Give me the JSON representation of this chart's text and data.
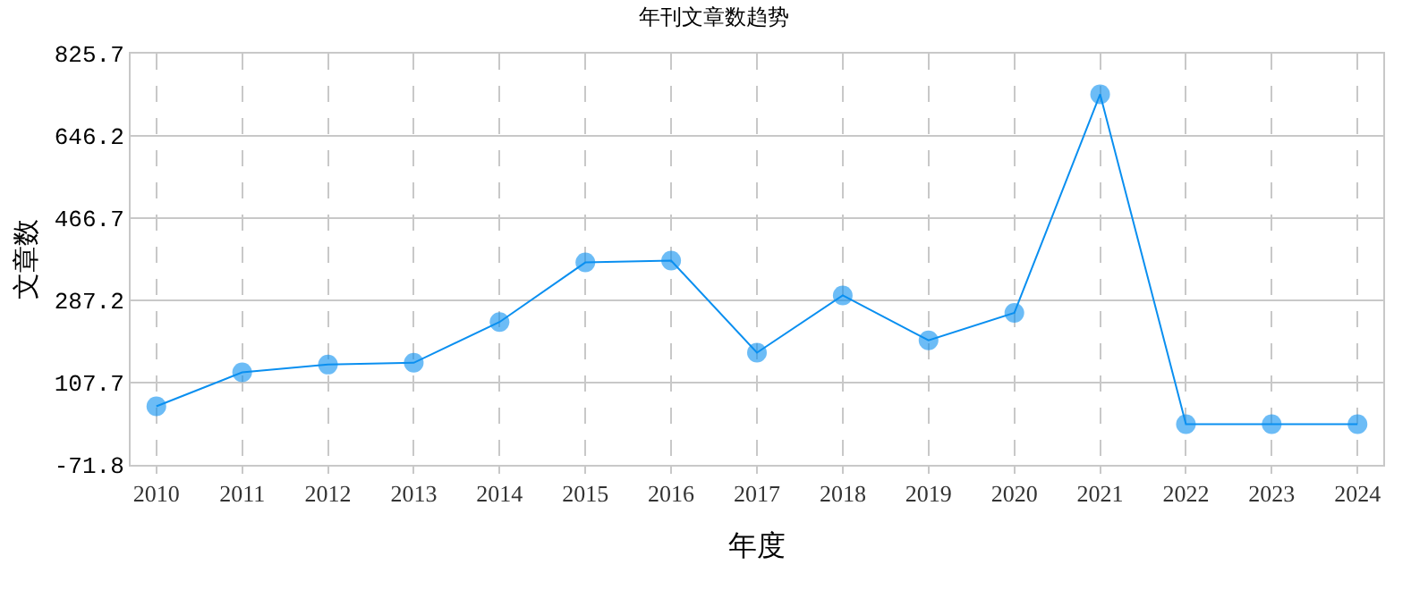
{
  "chart_data": {
    "type": "line",
    "title": "年刊文章数趋势",
    "xlabel": "年度",
    "ylabel": "文章数",
    "categories": [
      "2010",
      "2011",
      "2012",
      "2013",
      "2014",
      "2015",
      "2016",
      "2017",
      "2018",
      "2019",
      "2020",
      "2021",
      "2022",
      "2023",
      "2024"
    ],
    "series": [
      {
        "color": "#0a8ff0",
        "values": [
          56,
          130,
          147,
          151,
          240,
          370,
          374,
          173,
          298,
          200,
          260,
          737,
          17,
          17,
          17
        ]
      }
    ],
    "ylim": [
      -71.8,
      825.7
    ],
    "yticks": [
      -71.8,
      107.7,
      287.2,
      466.7,
      646.2,
      825.7
    ],
    "grid": true,
    "marker": "circle",
    "line_style": "solid",
    "legend": false
  }
}
